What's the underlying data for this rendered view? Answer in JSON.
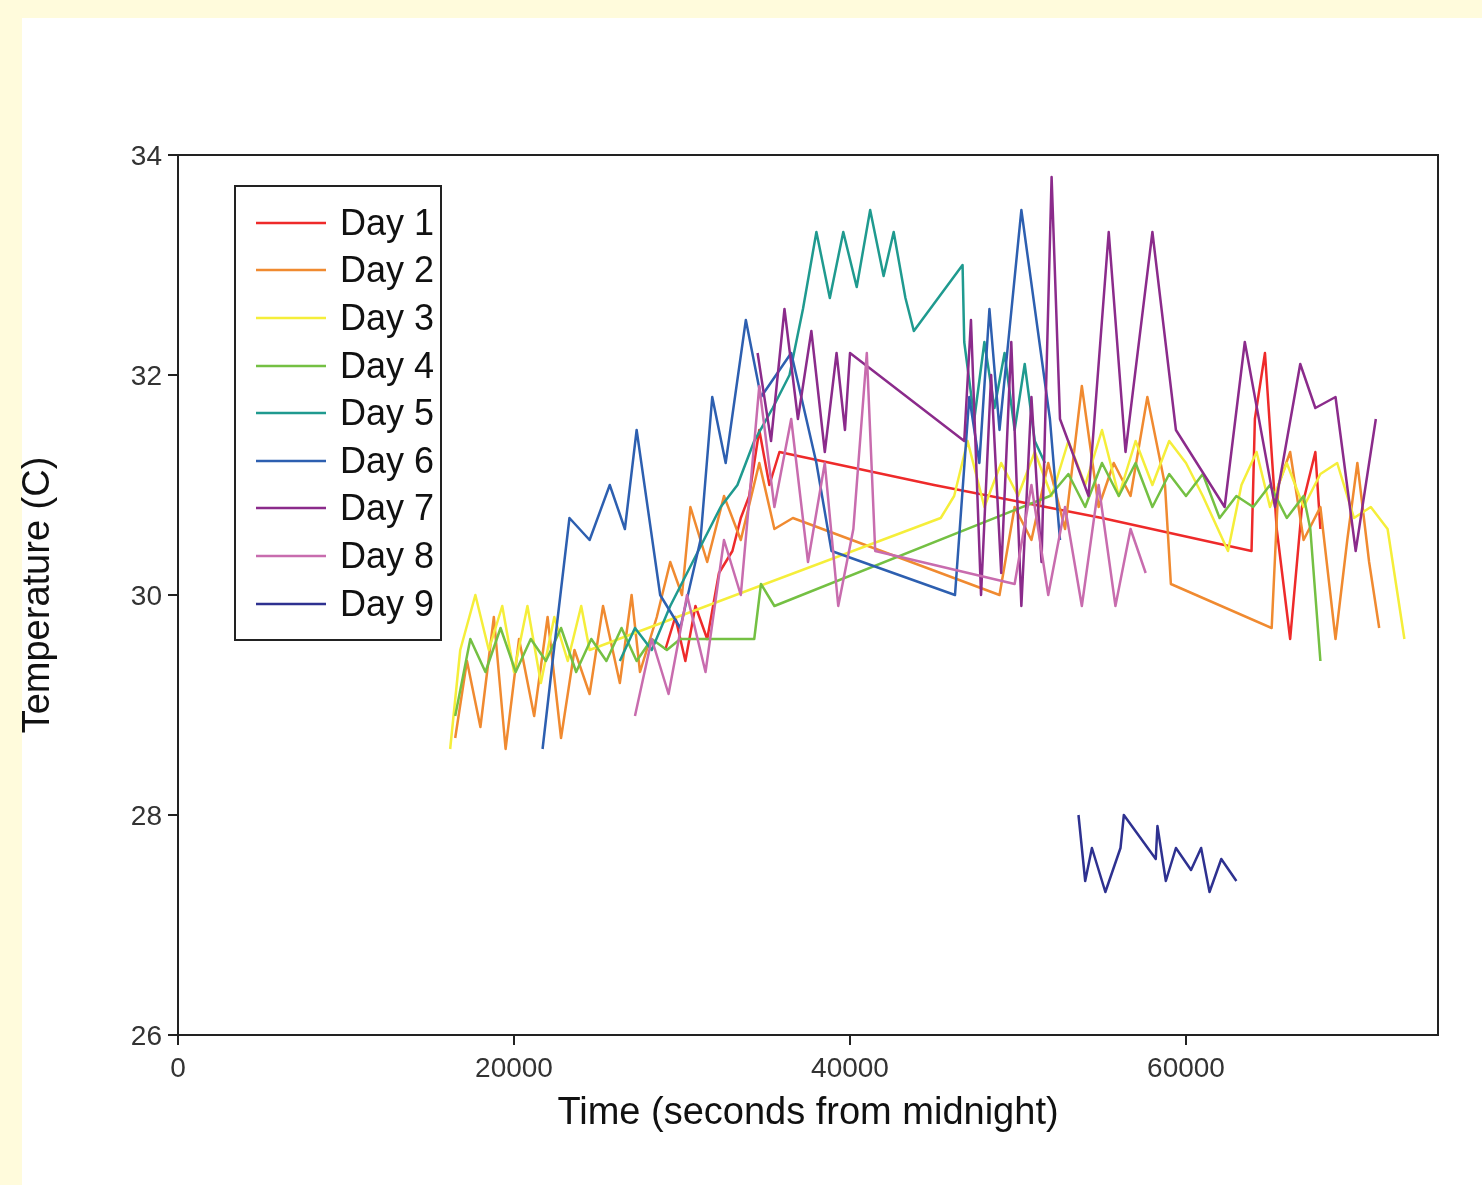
{
  "chart_data": {
    "type": "line",
    "xlabel": "Time (seconds from midnight)",
    "ylabel": "Temperature (C)",
    "xlim": [
      0,
      75000
    ],
    "xticks": [
      0,
      20000,
      40000,
      60000
    ],
    "ylim": [
      26,
      34
    ],
    "yticks": [
      26,
      28,
      30,
      32,
      34
    ],
    "grid": false,
    "legend": "top left",
    "marker": "none",
    "line_style": "solid",
    "series": [
      {
        "name": "Day 1",
        "color": "#ee2a2a",
        "x": [
          29000,
          29600,
          30200,
          30800,
          31500,
          32200,
          33000,
          33500,
          34000,
          34600,
          35200,
          35800,
          45000,
          55000,
          63900,
          64100,
          64700,
          65400,
          66200,
          66900,
          67700,
          68000
        ],
        "values": [
          29.5,
          29.8,
          29.4,
          29.9,
          29.6,
          30.2,
          30.4,
          30.7,
          30.9,
          31.5,
          31.0,
          31.3,
          31.0,
          30.7,
          30.4,
          31.6,
          32.2,
          30.6,
          29.6,
          30.8,
          31.3,
          30.6
        ]
      },
      {
        "name": "Day 2",
        "color": "#f08a30",
        "x": [
          16500,
          17200,
          18000,
          18800,
          19500,
          20300,
          21200,
          22000,
          22800,
          23600,
          24500,
          25300,
          26300,
          27000,
          27500,
          28500,
          29300,
          30000,
          30500,
          31500,
          32500,
          33500,
          34600,
          35500,
          36600,
          48900,
          49800,
          50800,
          51800,
          52800,
          53800,
          54800,
          55700,
          56700,
          57700,
          58750,
          59100,
          65100,
          65500,
          66200,
          67000,
          68000,
          68900,
          69600,
          70200,
          70900,
          71500
        ],
        "values": [
          28.7,
          29.4,
          28.8,
          29.8,
          28.6,
          29.6,
          28.9,
          29.8,
          28.7,
          29.5,
          29.1,
          29.9,
          29.2,
          30.0,
          29.3,
          29.8,
          30.3,
          30.0,
          30.8,
          30.3,
          30.9,
          30.5,
          31.2,
          30.6,
          30.7,
          30.0,
          30.8,
          30.5,
          31.2,
          30.6,
          31.9,
          30.8,
          31.2,
          30.9,
          31.8,
          31.0,
          30.1,
          29.7,
          31.0,
          31.3,
          30.5,
          30.8,
          29.6,
          30.5,
          31.2,
          30.3,
          29.7
        ]
      },
      {
        "name": "Day 3",
        "color": "#f5ee3a",
        "x": [
          16200,
          16800,
          17700,
          18500,
          19300,
          20000,
          20800,
          21600,
          22400,
          23200,
          24000,
          24500,
          45400,
          46200,
          47000,
          48000,
          49000,
          50000,
          51000,
          52000,
          53000,
          54000,
          55000,
          56000,
          57000,
          58000,
          59000,
          60000,
          61000,
          62500,
          63300,
          64200,
          65000,
          66000,
          67000,
          68000,
          69000,
          70000,
          71000,
          72000,
          73000
        ],
        "values": [
          28.6,
          29.5,
          30.0,
          29.5,
          29.9,
          29.3,
          29.9,
          29.2,
          29.8,
          29.4,
          29.9,
          29.5,
          30.7,
          30.9,
          31.4,
          30.8,
          31.2,
          30.9,
          31.3,
          30.9,
          31.4,
          31.0,
          31.5,
          30.9,
          31.4,
          31.0,
          31.4,
          31.2,
          30.9,
          30.4,
          31.0,
          31.3,
          30.8,
          31.2,
          30.8,
          31.1,
          31.2,
          30.7,
          30.8,
          30.6,
          29.6
        ]
      },
      {
        "name": "Day 4",
        "color": "#74c043",
        "x": [
          16500,
          17400,
          18300,
          19200,
          20100,
          21000,
          21900,
          22800,
          23700,
          24600,
          25500,
          26400,
          27300,
          28200,
          29100,
          29900,
          34300,
          34700,
          35100,
          35500,
          51900,
          53000,
          54000,
          55000,
          56000,
          57000,
          58000,
          59000,
          60000,
          61000,
          62000,
          63000,
          64000,
          65000,
          66000,
          67000,
          67400,
          68000
        ],
        "values": [
          28.9,
          29.6,
          29.3,
          29.7,
          29.3,
          29.6,
          29.4,
          29.7,
          29.3,
          29.6,
          29.4,
          29.7,
          29.4,
          29.6,
          29.5,
          29.6,
          29.6,
          30.1,
          30.0,
          29.9,
          30.9,
          31.1,
          30.8,
          31.2,
          30.9,
          31.2,
          30.8,
          31.1,
          30.9,
          31.1,
          30.7,
          30.9,
          30.8,
          31.0,
          30.7,
          30.9,
          30.6,
          29.4
        ]
      },
      {
        "name": "Day 5",
        "color": "#1f9a8f",
        "x": [
          26300,
          27200,
          28200,
          29300,
          30300,
          31300,
          32300,
          33300,
          34300,
          35400,
          36400,
          37200,
          38000,
          38800,
          39600,
          40400,
          41200,
          42000,
          42600,
          43300,
          43800,
          46700,
          46800,
          47400,
          48000,
          48600,
          49200,
          49800,
          50400,
          51000,
          51600
        ],
        "values": [
          29.4,
          29.7,
          29.5,
          29.9,
          30.2,
          30.5,
          30.8,
          31.0,
          31.4,
          31.7,
          32.0,
          32.6,
          33.3,
          32.7,
          33.3,
          32.8,
          33.5,
          32.9,
          33.3,
          32.7,
          32.4,
          33.0,
          32.3,
          31.6,
          32.3,
          31.7,
          32.2,
          31.5,
          32.1,
          31.4,
          31.2
        ]
      },
      {
        "name": "Day 6",
        "color": "#2d5fb0",
        "x": [
          21700,
          22300,
          23300,
          24500,
          25700,
          26600,
          27300,
          28700,
          29900,
          31100,
          31800,
          32600,
          33800,
          34700,
          36500,
          38000,
          38900,
          46250,
          47100,
          47700,
          48300,
          48900,
          50200,
          51900,
          52500
        ],
        "values": [
          28.6,
          29.4,
          30.7,
          30.5,
          31.0,
          30.6,
          31.5,
          30.0,
          29.7,
          30.5,
          31.8,
          31.2,
          32.5,
          31.8,
          32.2,
          31.2,
          30.4,
          30.0,
          31.8,
          31.2,
          32.6,
          31.5,
          33.5,
          31.6,
          30.5
        ]
      },
      {
        "name": "Day 7",
        "color": "#8b2b8b",
        "x": [
          34500,
          35300,
          36100,
          36900,
          37700,
          38500,
          39200,
          39700,
          40000,
          46800,
          47200,
          47800,
          48400,
          49000,
          49600,
          50200,
          50800,
          51400,
          52000,
          52500,
          54200,
          55400,
          56400,
          58000,
          59400,
          62300,
          63500,
          65300,
          66800,
          67700,
          68900,
          70100,
          71300
        ],
        "values": [
          32.2,
          31.4,
          32.6,
          31.6,
          32.4,
          31.3,
          32.2,
          31.5,
          32.2,
          31.4,
          32.5,
          30.0,
          32.0,
          30.2,
          32.3,
          29.9,
          31.8,
          30.3,
          33.8,
          31.6,
          30.9,
          33.3,
          31.3,
          33.3,
          31.5,
          30.8,
          32.3,
          30.8,
          32.1,
          31.7,
          31.8,
          30.4,
          31.6
        ]
      },
      {
        "name": "Day 8",
        "color": "#c86cae",
        "x": [
          27200,
          28200,
          29200,
          30300,
          31400,
          32500,
          33500,
          34600,
          35500,
          36500,
          37500,
          38500,
          39300,
          40200,
          41000,
          41500,
          49800,
          50800,
          51800,
          52800,
          53800,
          54800,
          55800,
          56700,
          57600
        ],
        "values": [
          28.9,
          29.6,
          29.1,
          30.0,
          29.3,
          30.5,
          30.0,
          31.9,
          30.8,
          31.6,
          30.3,
          31.2,
          29.9,
          30.6,
          32.2,
          30.4,
          30.1,
          31.0,
          30.0,
          30.8,
          29.9,
          31.0,
          29.9,
          30.6,
          30.2
        ]
      },
      {
        "name": "Day 9",
        "color": "#2e3190",
        "x": [
          53600,
          54000,
          54400,
          55200,
          56100,
          56300,
          58200,
          58300,
          58800,
          59400,
          60300,
          60900,
          61400,
          62100,
          63000
        ],
        "values": [
          28.0,
          27.4,
          27.7,
          27.3,
          27.7,
          28.0,
          27.6,
          27.9,
          27.4,
          27.7,
          27.5,
          27.7,
          27.3,
          27.6,
          27.4
        ]
      }
    ]
  }
}
